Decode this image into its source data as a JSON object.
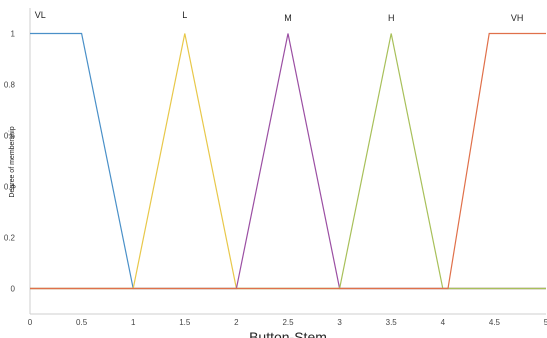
{
  "chart_data": {
    "type": "line",
    "title": "",
    "xlabel": "Button-Stem",
    "ylabel": "Degree of membership",
    "xlim": [
      0,
      5
    ],
    "ylim": [
      -0.1,
      1.1
    ],
    "grid": false,
    "x_ticks": [
      "0",
      "0.5",
      "1",
      "1.5",
      "2",
      "2.5",
      "3",
      "3.5",
      "4",
      "4.5",
      "5"
    ],
    "y_ticks": [
      "0",
      "0.2",
      "0.4",
      "0.6",
      "0.8",
      "1"
    ],
    "series": [
      {
        "name": "VL",
        "color": "#4a90c8",
        "label_at": [
          0.1,
          1.06
        ],
        "points": [
          [
            0,
            1
          ],
          [
            0.5,
            1
          ],
          [
            1,
            0
          ],
          [
            5,
            0
          ]
        ]
      },
      {
        "name": "L",
        "color": "#e8c84a",
        "label_at": [
          1.5,
          1.06
        ],
        "points": [
          [
            0,
            0
          ],
          [
            1,
            0
          ],
          [
            1.5,
            1
          ],
          [
            2,
            0
          ],
          [
            5,
            0
          ]
        ]
      },
      {
        "name": "M",
        "color": "#9b4fa3",
        "label_at": [
          2.5,
          1.05
        ],
        "points": [
          [
            0,
            0
          ],
          [
            2,
            0
          ],
          [
            2.5,
            1
          ],
          [
            3,
            0
          ],
          [
            5,
            0
          ]
        ]
      },
      {
        "name": "H",
        "color": "#a8c05a",
        "label_at": [
          3.5,
          1.05
        ],
        "points": [
          [
            0,
            0
          ],
          [
            3,
            0
          ],
          [
            3.5,
            1
          ],
          [
            4,
            0
          ],
          [
            5,
            0
          ]
        ]
      },
      {
        "name": "VH",
        "color": "#e0704a",
        "label_at": [
          4.72,
          1.05
        ],
        "points": [
          [
            0,
            0
          ],
          [
            4.05,
            0
          ],
          [
            4.45,
            1
          ],
          [
            5,
            1
          ]
        ]
      }
    ]
  }
}
